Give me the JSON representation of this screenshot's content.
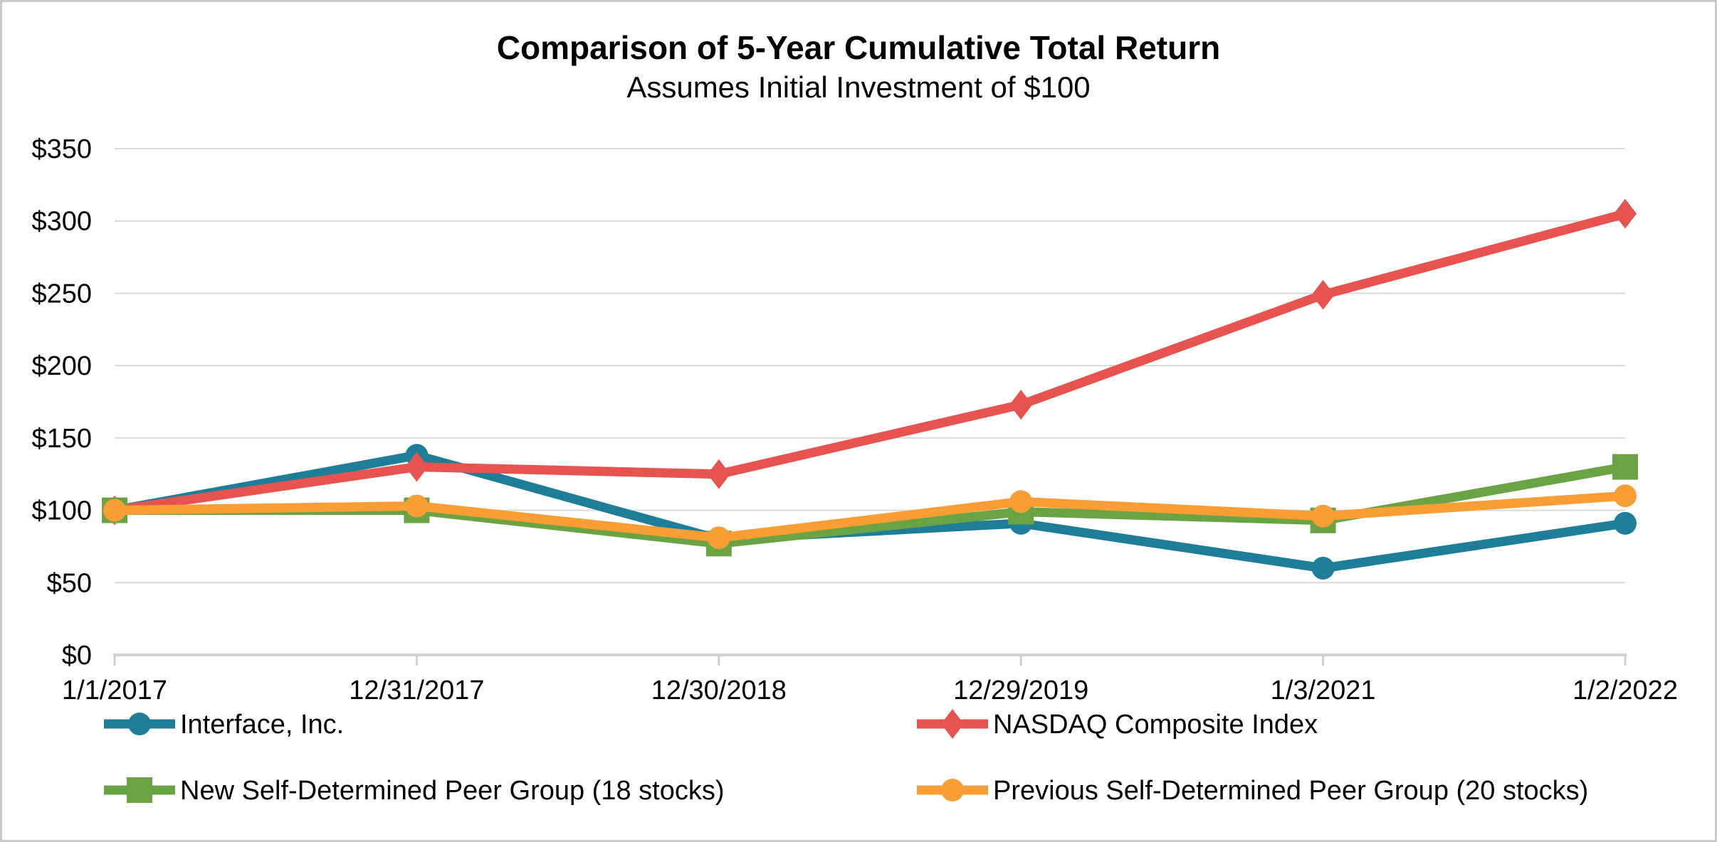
{
  "chart_data": {
    "type": "line",
    "title": "Comparison of 5-Year Cumulative Total Return",
    "subtitle": "Assumes Initial Investment of $100",
    "xlabel": "",
    "ylabel": "",
    "categories": [
      "1/1/2017",
      "12/31/2017",
      "12/30/2018",
      "12/29/2019",
      "1/3/2021",
      "1/2/2022"
    ],
    "series": [
      {
        "name": "Interface, Inc.",
        "marker": "circle",
        "color": "#1E7D98",
        "values": [
          100,
          138,
          80,
          91,
          60,
          91
        ]
      },
      {
        "name": "NASDAQ Composite Index",
        "marker": "diamond",
        "color": "#E75450",
        "values": [
          100,
          130,
          125,
          173,
          249,
          305
        ]
      },
      {
        "name": "New Self-Determined Peer Group (18 stocks)",
        "marker": "square",
        "color": "#6AA343",
        "values": [
          100,
          100,
          77,
          99,
          93,
          130
        ]
      },
      {
        "name": "Previous Self-Determined Peer Group (20 stocks)",
        "marker": "circle",
        "color": "#F89E35",
        "values": [
          100,
          103,
          81,
          106,
          96,
          110
        ]
      }
    ],
    "ylim": [
      0,
      350
    ],
    "y_tick_values": [
      0,
      50,
      100,
      150,
      200,
      250,
      300,
      350
    ],
    "y_tick_labels": [
      "$0",
      "$50",
      "$100",
      "$150",
      "$200",
      "$250",
      "$300",
      "$350"
    ],
    "grid": "horizontal",
    "legend_position": "bottom-two-columns",
    "colors": {
      "gridline": "#D9D9D9",
      "axis_line": "#D0D0D0",
      "text": "#000000",
      "background": "#FFFFFF",
      "frame_border": "#C9C9C9"
    }
  }
}
